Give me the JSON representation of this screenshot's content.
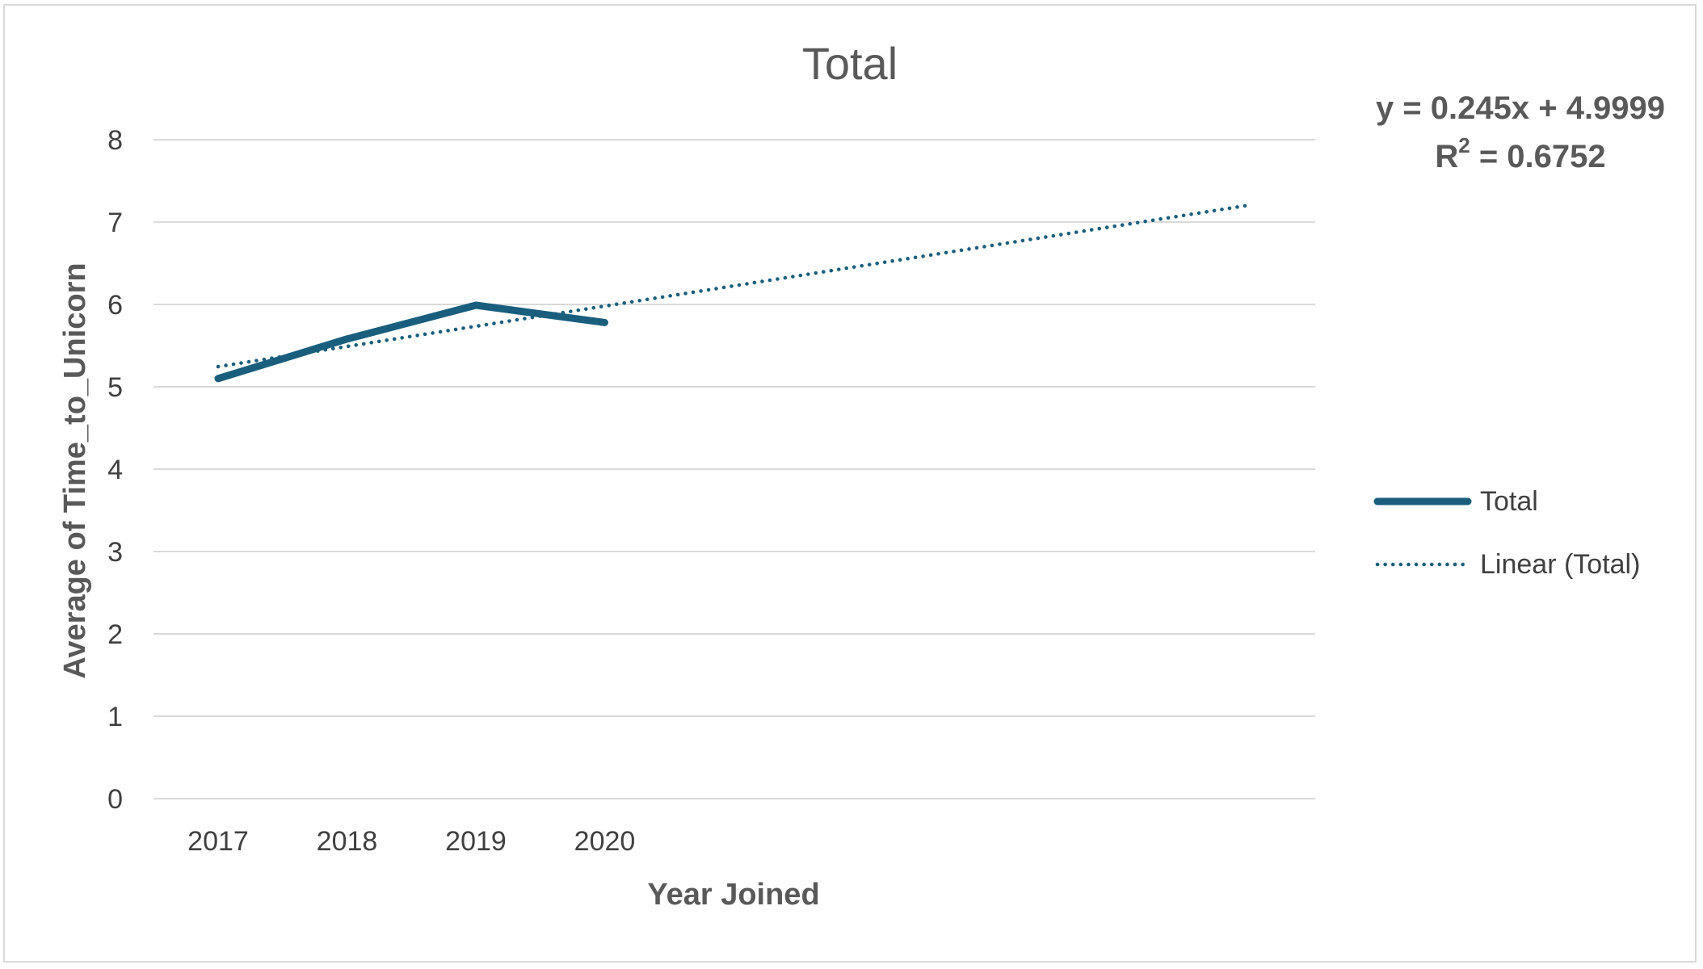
{
  "chart_data": {
    "type": "line",
    "title": "Total",
    "xlabel": "Year Joined",
    "ylabel": "Average of Time_to_Unicorn",
    "categories": [
      "2017",
      "2018",
      "2019",
      "2020"
    ],
    "series": [
      {
        "name": "Total",
        "values": [
          5.1,
          5.58,
          5.99,
          5.78
        ],
        "color": "#1a5e7e",
        "style": "solid"
      }
    ],
    "trendline": {
      "name": "Linear (Total)",
      "type": "linear",
      "slope": 0.245,
      "intercept": 4.9999,
      "forward_periods": 5,
      "color": "#1a5e7e",
      "style": "dotted",
      "equation_label": "y = 0.245x + 4.9999",
      "r2_prefix": "R",
      "r2_sup": "2",
      "r2_suffix": " = 0.6752"
    },
    "yticks": [
      "0",
      "1",
      "2",
      "3",
      "4",
      "5",
      "6",
      "7",
      "8"
    ],
    "ylim": [
      0,
      8
    ],
    "grid": true,
    "legend_position": "right"
  }
}
